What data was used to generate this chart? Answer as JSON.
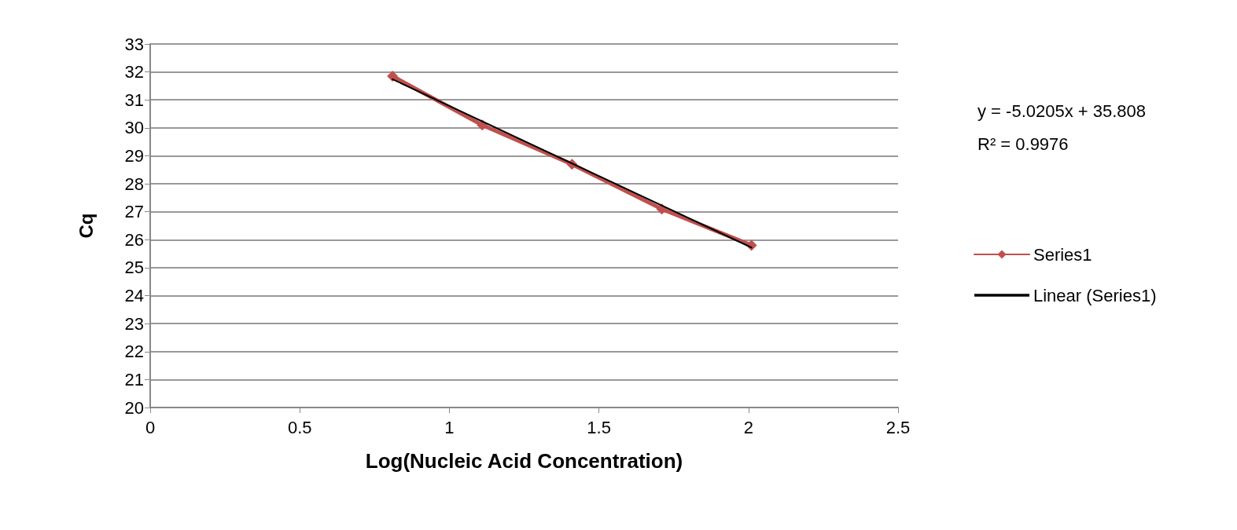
{
  "chart_data": {
    "type": "line",
    "xlabel": "Log(Nucleic Acid Concentration)",
    "ylabel": "Cq",
    "series": [
      {
        "name": "Series1",
        "color": "#c0504d",
        "x": [
          0.81,
          1.11,
          1.41,
          1.71,
          2.01
        ],
        "values": [
          31.85,
          30.1,
          28.7,
          27.1,
          25.8
        ]
      },
      {
        "name": "Linear (Series1)",
        "color": "#000000",
        "marker": "none",
        "x": [
          0.81,
          2.01
        ],
        "values": [
          31.74,
          25.72
        ]
      }
    ],
    "xlim": [
      0,
      2.5
    ],
    "xticks": [
      0,
      0.5,
      1,
      1.5,
      2,
      2.5
    ],
    "ylim": [
      20,
      33
    ],
    "yticks": [
      20,
      21,
      22,
      23,
      24,
      25,
      26,
      27,
      28,
      29,
      30,
      31,
      32,
      33
    ],
    "grid": "y",
    "legend": "right",
    "marker": "diamond",
    "line_style": "solid",
    "annotations": [
      "y = -5.0205x + 35.808",
      "R² = 0.9976"
    ]
  }
}
